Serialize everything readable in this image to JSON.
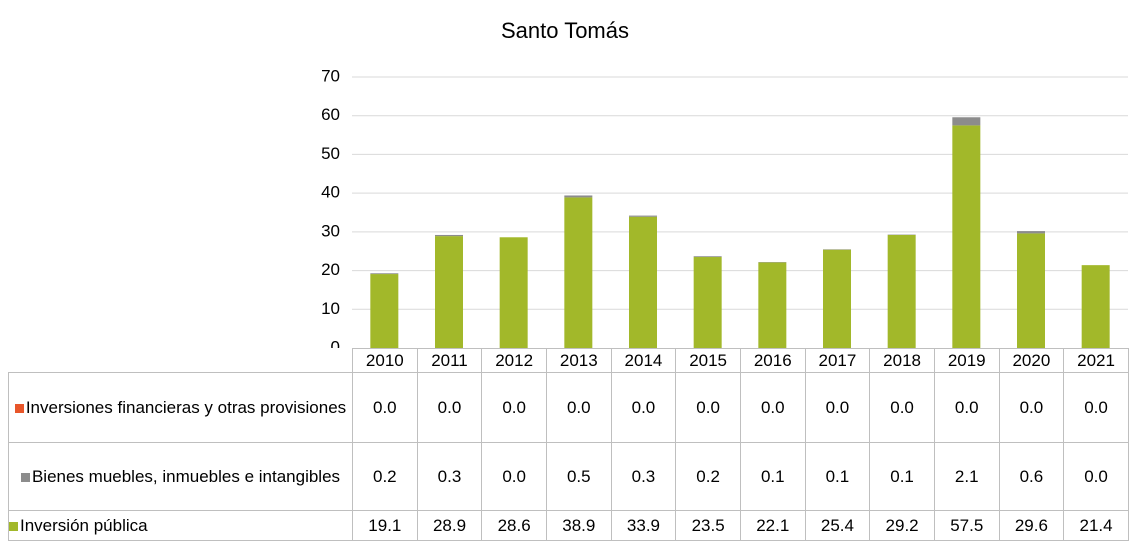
{
  "chart_data": {
    "type": "bar",
    "stacked": true,
    "title": "Santo Tomás",
    "categories": [
      "2010",
      "2011",
      "2012",
      "2013",
      "2014",
      "2015",
      "2016",
      "2017",
      "2018",
      "2019",
      "2020",
      "2021"
    ],
    "series": [
      {
        "name": "Inversiones financieras y otras provisiones",
        "color": "#e8562a",
        "values": [
          0,
          0,
          0,
          0,
          0,
          0,
          0,
          0,
          0,
          0,
          0,
          0
        ],
        "value_labels": [
          "0.0",
          "0.0",
          "0.0",
          "0.0",
          "0.0",
          "0.0",
          "0.0",
          "0.0",
          "0.0",
          "0.0",
          "0.0",
          "0.0"
        ]
      },
      {
        "name": "Bienes muebles, inmuebles e intangibles",
        "color": "#8c8c8c",
        "values": [
          0.2,
          0.3,
          0,
          0.5,
          0.3,
          0.2,
          0.1,
          0.1,
          0.1,
          2.1,
          0.6,
          0
        ],
        "value_labels": [
          "0.2",
          "0.3",
          "0.0",
          "0.5",
          "0.3",
          "0.2",
          "0.1",
          "0.1",
          "0.1",
          "2.1",
          "0.6",
          "0.0"
        ]
      },
      {
        "name": "Inversión pública",
        "color": "#a2b82a",
        "values": [
          19.1,
          28.9,
          28.6,
          38.9,
          33.9,
          23.5,
          22.1,
          25.4,
          29.2,
          57.5,
          29.6,
          21.4
        ],
        "value_labels": [
          "19.1",
          "28.9",
          "28.6",
          "38.9",
          "33.9",
          "23.5",
          "22.1",
          "25.4",
          "29.2",
          "57.5",
          "29.6",
          "21.4"
        ]
      }
    ],
    "ylim": [
      0,
      70
    ],
    "yticks": [
      0,
      10,
      20,
      30,
      40,
      50,
      60,
      70
    ],
    "grid": true
  }
}
